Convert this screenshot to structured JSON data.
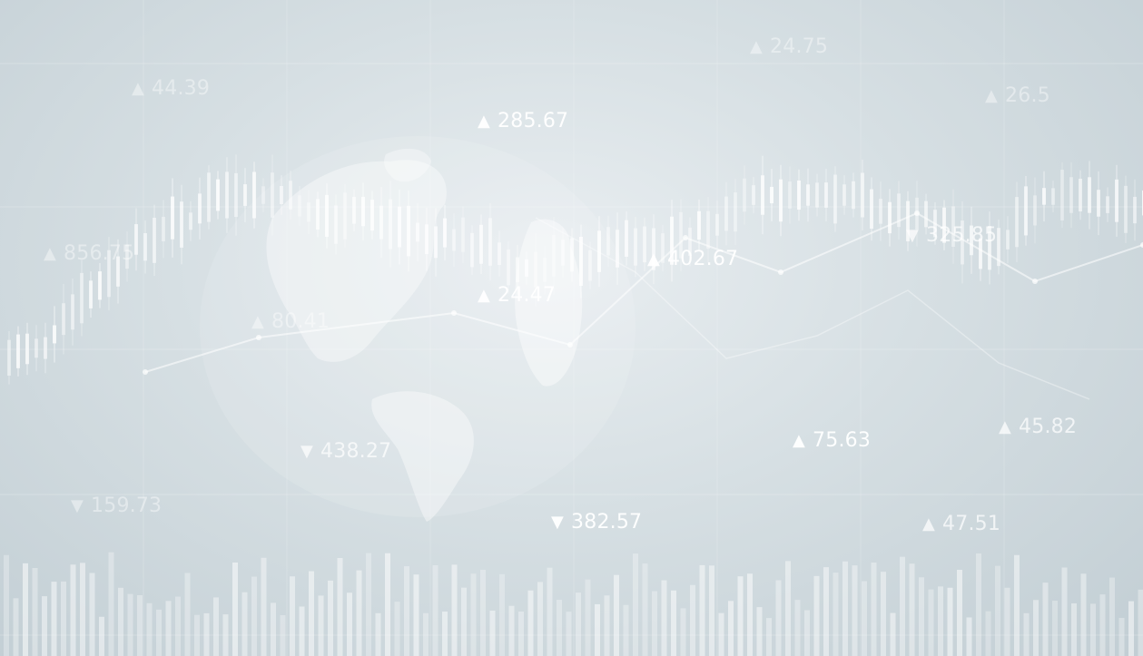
{
  "colors": {
    "background_center": "#e9eef1",
    "background_edge": "#c2ced4",
    "candle": "#ffffff",
    "grid": "#ffffff"
  },
  "chart_data": {
    "type": "line",
    "grid": true,
    "candlestick_present": true,
    "volume_bars_present": true,
    "world_map_background": true,
    "tickers": [
      {
        "direction": "up",
        "value": "24.75"
      },
      {
        "direction": "up",
        "value": "44.39"
      },
      {
        "direction": "up",
        "value": "285.67"
      },
      {
        "direction": "up",
        "value": "26.5"
      },
      {
        "direction": "up",
        "value": "856.75"
      },
      {
        "direction": "up",
        "value": "402.67"
      },
      {
        "direction": "down",
        "value": "325.85"
      },
      {
        "direction": "up",
        "value": "24.47"
      },
      {
        "direction": "up",
        "value": "80.41"
      },
      {
        "direction": "down",
        "value": "438.27"
      },
      {
        "direction": "up",
        "value": "75.63"
      },
      {
        "direction": "up",
        "value": "45.82"
      },
      {
        "direction": "down",
        "value": "159.73"
      },
      {
        "direction": "down",
        "value": "382.57"
      },
      {
        "direction": "up",
        "value": "47.51"
      }
    ]
  }
}
